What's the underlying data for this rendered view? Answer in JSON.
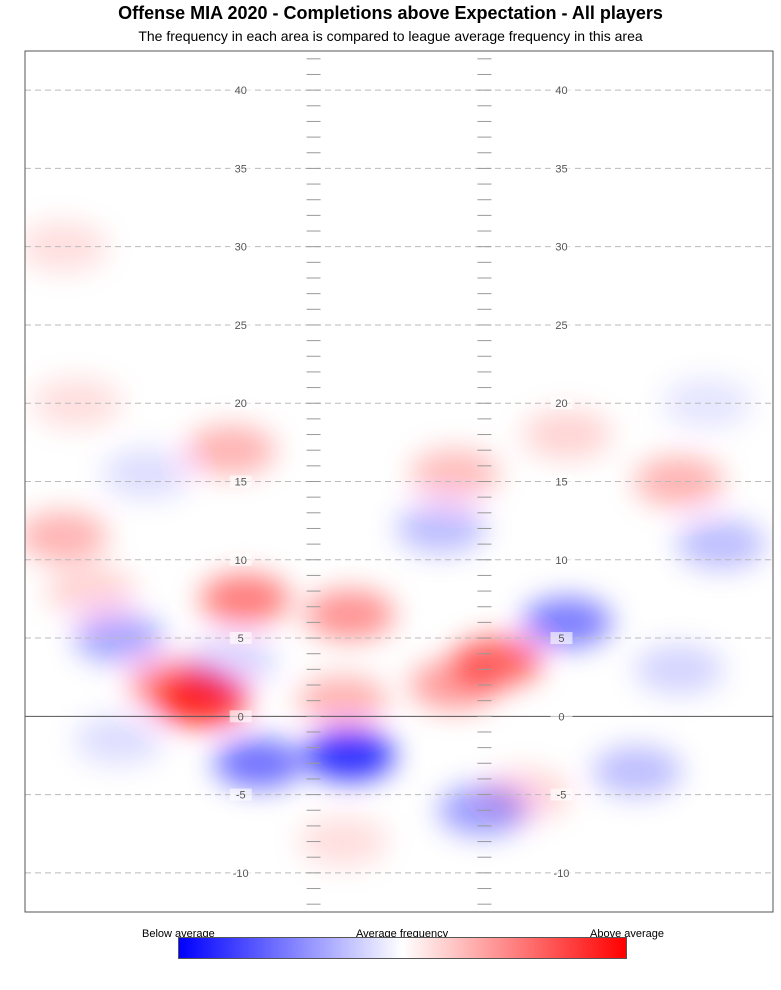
{
  "chart_data": {
    "type": "heatmap",
    "title": "Offense MIA 2020 - Completions above Expectation - All players",
    "subtitle": "The frequency in each area is compared to league average frequency in this area",
    "y_ticks": [
      40,
      35,
      30,
      25,
      20,
      15,
      10,
      5,
      0,
      -5,
      -10
    ],
    "y_tick_labels": [
      "40",
      "35",
      "30",
      "25",
      "20",
      "15",
      "10",
      "5",
      "0",
      "-5",
      "-10"
    ],
    "ylim": [
      -12.5,
      42.5
    ],
    "xlim": [
      -26.7,
      26.7
    ],
    "line_of_scrimmage": 0,
    "hash_marks_x": [
      -6.1,
      6.1
    ],
    "grid": true,
    "legend": {
      "position": "bottom",
      "low_label": "Below average",
      "mid_label": "Average frequency",
      "high_label": "Above average",
      "low_color": "#0000ff",
      "mid_color": "#ffffff",
      "high_color": "#ff0000"
    },
    "hotspots": [
      {
        "x": -14,
        "y": 1,
        "intensity": 0.95
      },
      {
        "x": -16,
        "y": 2,
        "intensity": 0.55
      },
      {
        "x": -11,
        "y": 7.5,
        "intensity": 0.6
      },
      {
        "x": -3.5,
        "y": 6.5,
        "intensity": 0.5
      },
      {
        "x": 7,
        "y": 3.5,
        "intensity": 0.7
      },
      {
        "x": 4,
        "y": 2,
        "intensity": 0.45
      },
      {
        "x": -12,
        "y": 17,
        "intensity": 0.35
      },
      {
        "x": 4,
        "y": 15.5,
        "intensity": 0.3
      },
      {
        "x": 20,
        "y": 15,
        "intensity": 0.35
      },
      {
        "x": 12,
        "y": 18,
        "intensity": 0.2
      },
      {
        "x": -24,
        "y": 11.5,
        "intensity": 0.35
      },
      {
        "x": -22,
        "y": 8,
        "intensity": 0.2
      },
      {
        "x": -4,
        "y": 1,
        "intensity": 0.35
      },
      {
        "x": 9,
        "y": -5,
        "intensity": 0.2
      },
      {
        "x": -4,
        "y": -8,
        "intensity": 0.15
      },
      {
        "x": -24,
        "y": 30,
        "intensity": 0.15
      },
      {
        "x": -23,
        "y": 20,
        "intensity": 0.15
      },
      {
        "x": -3.5,
        "y": -2.5,
        "intensity": -0.95
      },
      {
        "x": -10,
        "y": -3,
        "intensity": -0.65
      },
      {
        "x": 12,
        "y": 6,
        "intensity": -0.6
      },
      {
        "x": -20,
        "y": 5,
        "intensity": -0.4
      },
      {
        "x": 6,
        "y": -6,
        "intensity": -0.45
      },
      {
        "x": 3,
        "y": 12,
        "intensity": -0.3
      },
      {
        "x": 23,
        "y": 11,
        "intensity": -0.3
      },
      {
        "x": -12,
        "y": 3.5,
        "intensity": -0.2
      },
      {
        "x": 17,
        "y": -3.5,
        "intensity": -0.3
      },
      {
        "x": 20,
        "y": 3,
        "intensity": -0.2
      },
      {
        "x": -18,
        "y": 15.5,
        "intensity": -0.15
      },
      {
        "x": 22,
        "y": 20,
        "intensity": -0.12
      },
      {
        "x": -20,
        "y": -1.5,
        "intensity": -0.15
      }
    ]
  }
}
